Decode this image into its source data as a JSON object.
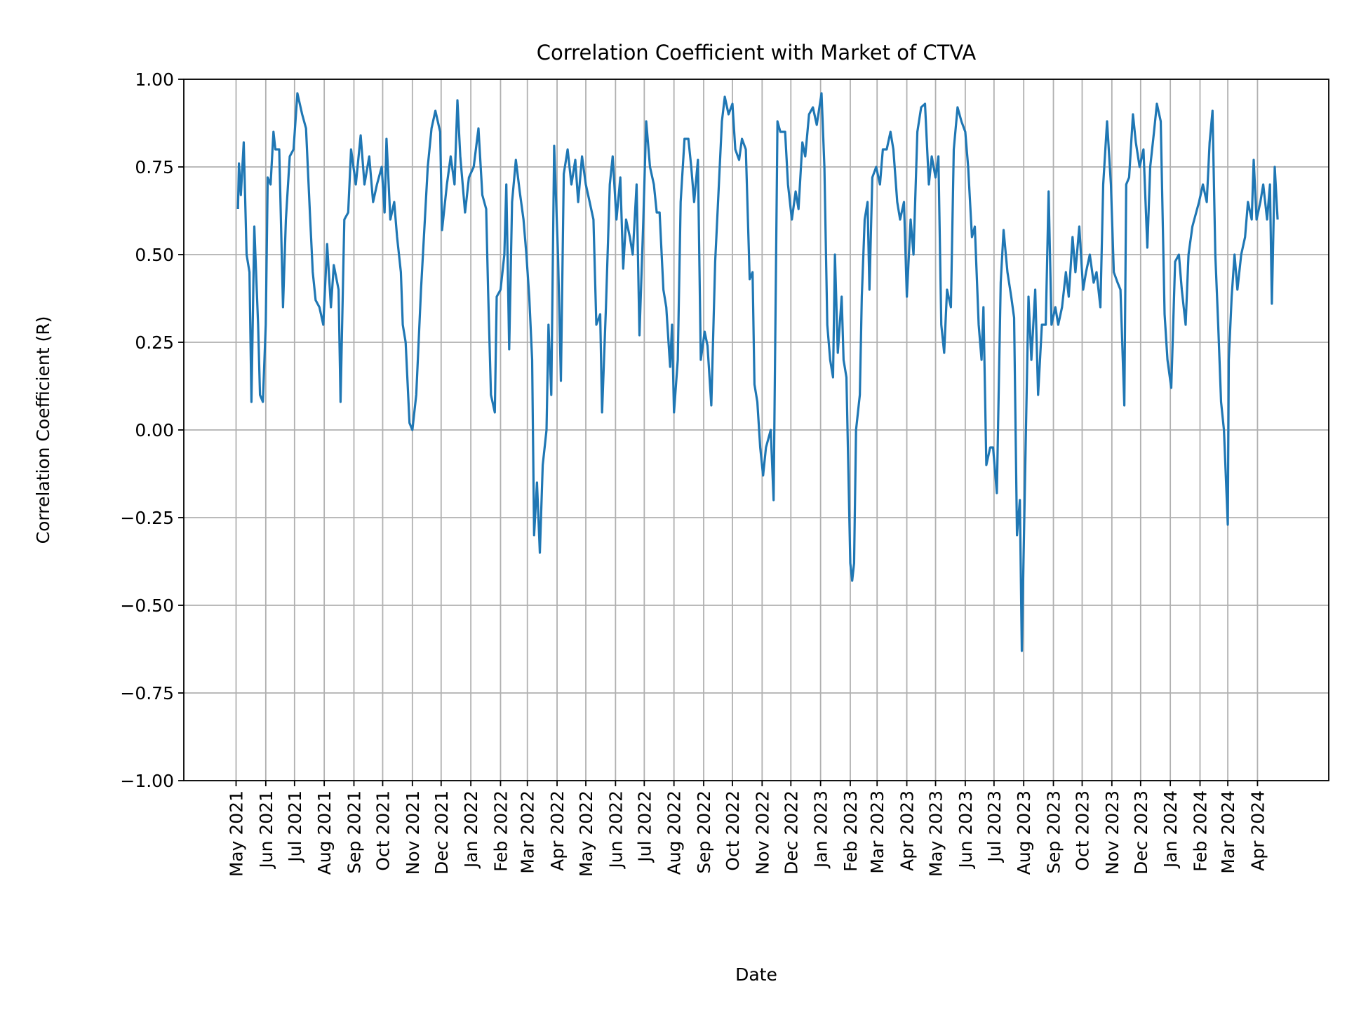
{
  "chart_data": {
    "type": "line",
    "title": "Correlation Coefficient with Market of CTVA",
    "xlabel": "Date",
    "ylabel": "Correlation Coefficient (R)",
    "ylim": [
      -1.0,
      1.0
    ],
    "yticks": [
      "1.00",
      "0.75",
      "0.50",
      "0.25",
      "0.00",
      "−0.25",
      "−0.50",
      "−0.75",
      "−1.00"
    ],
    "ytick_values": [
      1.0,
      0.75,
      0.5,
      0.25,
      0.0,
      -0.25,
      -0.5,
      -0.75,
      -1.0
    ],
    "xticks": [
      "May 2021",
      "Jun 2021",
      "Jul 2021",
      "Aug 2021",
      "Sep 2021",
      "Oct 2021",
      "Nov 2021",
      "Dec 2021",
      "Jan 2022",
      "Feb 2022",
      "Mar 2022",
      "Apr 2022",
      "May 2022",
      "Jun 2022",
      "Jul 2022",
      "Aug 2022",
      "Sep 2022",
      "Oct 2022",
      "Nov 2022",
      "Dec 2022",
      "Jan 2023",
      "Feb 2023",
      "Mar 2023",
      "Apr 2023",
      "May 2023",
      "Jun 2023",
      "Jul 2023",
      "Aug 2023",
      "Sep 2023",
      "Oct 2023",
      "Nov 2023",
      "Dec 2023",
      "Jan 2024",
      "Feb 2024",
      "Mar 2024",
      "Apr 2024"
    ],
    "xtick_dates": [
      "2021-05-01",
      "2021-06-01",
      "2021-07-01",
      "2021-08-01",
      "2021-09-01",
      "2021-10-01",
      "2021-11-01",
      "2021-12-01",
      "2022-01-01",
      "2022-02-01",
      "2022-03-01",
      "2022-04-01",
      "2022-05-01",
      "2022-06-01",
      "2022-07-01",
      "2022-08-01",
      "2022-09-01",
      "2022-10-01",
      "2022-11-01",
      "2022-12-01",
      "2023-01-01",
      "2023-02-01",
      "2023-03-01",
      "2023-04-01",
      "2023-05-01",
      "2023-06-01",
      "2023-07-01",
      "2023-08-01",
      "2023-09-01",
      "2023-10-01",
      "2023-11-01",
      "2023-12-01",
      "2024-01-01",
      "2024-02-01",
      "2024-03-01",
      "2024-04-01"
    ],
    "grid": true,
    "line_color": "#1f77b4",
    "series": [
      {
        "x": [
          "2021-05-03",
          "2021-05-04",
          "2021-05-06",
          "2021-05-09",
          "2021-05-12",
          "2021-05-15",
          "2021-05-17",
          "2021-05-20",
          "2021-05-24",
          "2021-05-26",
          "2021-05-29",
          "2021-06-01",
          "2021-06-03",
          "2021-06-06",
          "2021-06-09",
          "2021-06-11",
          "2021-06-15",
          "2021-06-19",
          "2021-06-22",
          "2021-06-26",
          "2021-06-30",
          "2021-07-04",
          "2021-07-09",
          "2021-07-13",
          "2021-07-17",
          "2021-07-20",
          "2021-07-23",
          "2021-07-27",
          "2021-07-31",
          "2021-08-04",
          "2021-08-08",
          "2021-08-11",
          "2021-08-16",
          "2021-08-18",
          "2021-08-22",
          "2021-08-26",
          "2021-08-29",
          "2021-09-03",
          "2021-09-08",
          "2021-09-12",
          "2021-09-17",
          "2021-09-21",
          "2021-09-25",
          "2021-09-30",
          "2021-10-03",
          "2021-10-05",
          "2021-10-09",
          "2021-10-13",
          "2021-10-16",
          "2021-10-20",
          "2021-10-22",
          "2021-10-25",
          "2021-10-29",
          "2021-11-01",
          "2021-11-05",
          "2021-11-10",
          "2021-11-14",
          "2021-11-17",
          "2021-11-21",
          "2021-11-25",
          "2021-11-30",
          "2021-12-02",
          "2021-12-07",
          "2021-12-11",
          "2021-12-15",
          "2021-12-18",
          "2021-12-21",
          "2021-12-26",
          "2021-12-30",
          "2022-01-04",
          "2022-01-09",
          "2022-01-13",
          "2022-01-17",
          "2022-01-19",
          "2022-01-22",
          "2022-01-26",
          "2022-01-28",
          "2022-02-01",
          "2022-02-05",
          "2022-02-07",
          "2022-02-10",
          "2022-02-13",
          "2022-02-17",
          "2022-02-21",
          "2022-02-25",
          "2022-02-28",
          "2022-03-03",
          "2022-03-06",
          "2022-03-08",
          "2022-03-11",
          "2022-03-14",
          "2022-03-17",
          "2022-03-21",
          "2022-03-23",
          "2022-03-26",
          "2022-03-29",
          "2022-04-02",
          "2022-04-05",
          "2022-04-08",
          "2022-04-12",
          "2022-04-16",
          "2022-04-20",
          "2022-04-23",
          "2022-04-27",
          "2022-05-01",
          "2022-05-05",
          "2022-05-09",
          "2022-05-12",
          "2022-05-16",
          "2022-05-18",
          "2022-05-22",
          "2022-05-26",
          "2022-05-29",
          "2022-06-02",
          "2022-06-06",
          "2022-06-09",
          "2022-06-12",
          "2022-06-16",
          "2022-06-19",
          "2022-06-23",
          "2022-06-26",
          "2022-06-30",
          "2022-07-03",
          "2022-07-07",
          "2022-07-11",
          "2022-07-14",
          "2022-07-17",
          "2022-07-21",
          "2022-07-24",
          "2022-07-28",
          "2022-07-30",
          "2022-08-01",
          "2022-08-05",
          "2022-08-08",
          "2022-08-12",
          "2022-08-16",
          "2022-08-19",
          "2022-08-22",
          "2022-08-26",
          "2022-08-29",
          "2022-09-02",
          "2022-09-05",
          "2022-09-09",
          "2022-09-13",
          "2022-09-16",
          "2022-09-20",
          "2022-09-23",
          "2022-09-27",
          "2022-10-01",
          "2022-10-04",
          "2022-10-08",
          "2022-10-11",
          "2022-10-15",
          "2022-10-19",
          "2022-10-22",
          "2022-10-24",
          "2022-10-27",
          "2022-10-30",
          "2022-11-02",
          "2022-11-05",
          "2022-11-10",
          "2022-11-13",
          "2022-11-17",
          "2022-11-20",
          "2022-11-25",
          "2022-11-28",
          "2022-12-02",
          "2022-12-06",
          "2022-12-09",
          "2022-12-13",
          "2022-12-16",
          "2022-12-20",
          "2022-12-24",
          "2022-12-28",
          "2023-01-02",
          "2023-01-05",
          "2023-01-08",
          "2023-01-11",
          "2023-01-14",
          "2023-01-16",
          "2023-01-19",
          "2023-01-23",
          "2023-01-25",
          "2023-01-28",
          "2023-02-01",
          "2023-02-03",
          "2023-02-05",
          "2023-02-07",
          "2023-02-11",
          "2023-02-13",
          "2023-02-16",
          "2023-02-19",
          "2023-02-21",
          "2023-02-24",
          "2023-02-28",
          "2023-03-04",
          "2023-03-07",
          "2023-03-11",
          "2023-03-15",
          "2023-03-18",
          "2023-03-22",
          "2023-03-25",
          "2023-03-29",
          "2023-04-01",
          "2023-04-05",
          "2023-04-08",
          "2023-04-12",
          "2023-04-16",
          "2023-04-20",
          "2023-04-24",
          "2023-04-27",
          "2023-05-01",
          "2023-05-04",
          "2023-05-07",
          "2023-05-10",
          "2023-05-13",
          "2023-05-17",
          "2023-05-20",
          "2023-05-24",
          "2023-05-28",
          "2023-06-01",
          "2023-06-04",
          "2023-06-08",
          "2023-06-11",
          "2023-06-15",
          "2023-06-18",
          "2023-06-20",
          "2023-06-23",
          "2023-06-27",
          "2023-06-30",
          "2023-07-04",
          "2023-07-08",
          "2023-07-11",
          "2023-07-15",
          "2023-07-19",
          "2023-07-22",
          "2023-07-25",
          "2023-07-28",
          "2023-07-30",
          "2023-08-03",
          "2023-08-06",
          "2023-08-09",
          "2023-08-13",
          "2023-08-16",
          "2023-08-20",
          "2023-08-24",
          "2023-08-27",
          "2023-08-30",
          "2023-09-03",
          "2023-09-06",
          "2023-09-10",
          "2023-09-14",
          "2023-09-17",
          "2023-09-21",
          "2023-09-24",
          "2023-09-28",
          "2023-10-02",
          "2023-10-05",
          "2023-10-09",
          "2023-10-13",
          "2023-10-16",
          "2023-10-20",
          "2023-10-23",
          "2023-10-27",
          "2023-10-31",
          "2023-11-03",
          "2023-11-07",
          "2023-11-10",
          "2023-11-14",
          "2023-11-16",
          "2023-11-19",
          "2023-11-23",
          "2023-11-26",
          "2023-11-30",
          "2023-12-04",
          "2023-12-08",
          "2023-12-11",
          "2023-12-15",
          "2023-12-18",
          "2023-12-22",
          "2023-12-26",
          "2023-12-29",
          "2024-01-02",
          "2024-01-06",
          "2024-01-10",
          "2024-01-13",
          "2024-01-17",
          "2024-01-20",
          "2024-01-24",
          "2024-01-28",
          "2024-01-31",
          "2024-02-04",
          "2024-02-08",
          "2024-02-11",
          "2024-02-14",
          "2024-02-17",
          "2024-02-20",
          "2024-02-23",
          "2024-02-26",
          "2024-03-01",
          "2024-03-02",
          "2024-03-05",
          "2024-03-08",
          "2024-03-11",
          "2024-03-15",
          "2024-03-19",
          "2024-03-22",
          "2024-03-26",
          "2024-03-28",
          "2024-03-31",
          "2024-04-04",
          "2024-04-07",
          "2024-04-11",
          "2024-04-14",
          "2024-04-16",
          "2024-04-19",
          "2024-04-22"
        ],
        "y": [
          0.63,
          0.76,
          0.67,
          0.82,
          0.5,
          0.45,
          0.08,
          0.58,
          0.3,
          0.1,
          0.08,
          0.3,
          0.72,
          0.7,
          0.85,
          0.8,
          0.8,
          0.35,
          0.6,
          0.78,
          0.8,
          0.96,
          0.9,
          0.86,
          0.62,
          0.45,
          0.37,
          0.35,
          0.3,
          0.53,
          0.35,
          0.47,
          0.4,
          0.08,
          0.6,
          0.62,
          0.8,
          0.7,
          0.84,
          0.7,
          0.78,
          0.65,
          0.7,
          0.75,
          0.62,
          0.83,
          0.6,
          0.65,
          0.55,
          0.45,
          0.3,
          0.25,
          0.02,
          0.0,
          0.1,
          0.4,
          0.6,
          0.75,
          0.86,
          0.91,
          0.85,
          0.57,
          0.7,
          0.78,
          0.7,
          0.94,
          0.78,
          0.62,
          0.72,
          0.75,
          0.86,
          0.67,
          0.63,
          0.4,
          0.1,
          0.05,
          0.38,
          0.4,
          0.5,
          0.7,
          0.23,
          0.65,
          0.77,
          0.68,
          0.6,
          0.5,
          0.38,
          0.2,
          -0.3,
          -0.15,
          -0.35,
          -0.1,
          0.0,
          0.3,
          0.1,
          0.81,
          0.5,
          0.14,
          0.73,
          0.8,
          0.7,
          0.77,
          0.65,
          0.78,
          0.7,
          0.65,
          0.6,
          0.3,
          0.33,
          0.05,
          0.35,
          0.7,
          0.78,
          0.6,
          0.72,
          0.46,
          0.6,
          0.55,
          0.5,
          0.7,
          0.27,
          0.6,
          0.88,
          0.75,
          0.7,
          0.62,
          0.62,
          0.4,
          0.35,
          0.18,
          0.3,
          0.05,
          0.2,
          0.65,
          0.83,
          0.83,
          0.75,
          0.65,
          0.77,
          0.2,
          0.28,
          0.24,
          0.07,
          0.48,
          0.65,
          0.88,
          0.95,
          0.9,
          0.93,
          0.8,
          0.77,
          0.83,
          0.8,
          0.43,
          0.45,
          0.13,
          0.08,
          -0.05,
          -0.13,
          -0.05,
          0.0,
          -0.2,
          0.88,
          0.85,
          0.85,
          0.7,
          0.6,
          0.68,
          0.63,
          0.82,
          0.78,
          0.9,
          0.92,
          0.87,
          0.96,
          0.75,
          0.3,
          0.2,
          0.15,
          0.5,
          0.22,
          0.38,
          0.2,
          0.15,
          -0.38,
          -0.43,
          -0.38,
          0.0,
          0.1,
          0.38,
          0.6,
          0.65,
          0.4,
          0.72,
          0.75,
          0.7,
          0.8,
          0.8,
          0.85,
          0.8,
          0.65,
          0.6,
          0.65,
          0.38,
          0.6,
          0.5,
          0.85,
          0.92,
          0.93,
          0.7,
          0.78,
          0.72,
          0.78,
          0.3,
          0.22,
          0.4,
          0.35,
          0.8,
          0.92,
          0.88,
          0.85,
          0.75,
          0.55,
          0.58,
          0.3,
          0.2,
          0.35,
          -0.1,
          -0.05,
          -0.05,
          -0.18,
          0.42,
          0.57,
          0.45,
          0.38,
          0.32,
          -0.3,
          -0.2,
          -0.63,
          -0.05,
          0.38,
          0.2,
          0.4,
          0.1,
          0.3,
          0.3,
          0.68,
          0.3,
          0.35,
          0.3,
          0.35,
          0.45,
          0.38,
          0.55,
          0.45,
          0.58,
          0.4,
          0.45,
          0.5,
          0.42,
          0.45,
          0.35,
          0.7,
          0.88,
          0.7,
          0.45,
          0.42,
          0.4,
          0.07,
          0.7,
          0.72,
          0.9,
          0.82,
          0.75,
          0.8,
          0.52,
          0.75,
          0.85,
          0.93,
          0.88,
          0.33,
          0.2,
          0.12,
          0.48,
          0.5,
          0.4,
          0.3,
          0.5,
          0.58,
          0.62,
          0.65,
          0.7,
          0.65,
          0.82,
          0.91,
          0.5,
          0.3,
          0.08,
          0.0,
          -0.27,
          0.2,
          0.38,
          0.5,
          0.4,
          0.5,
          0.55,
          0.65,
          0.6,
          0.77,
          0.6,
          0.65,
          0.7,
          0.6,
          0.7,
          0.36,
          0.75,
          0.6
        ]
      }
    ]
  }
}
